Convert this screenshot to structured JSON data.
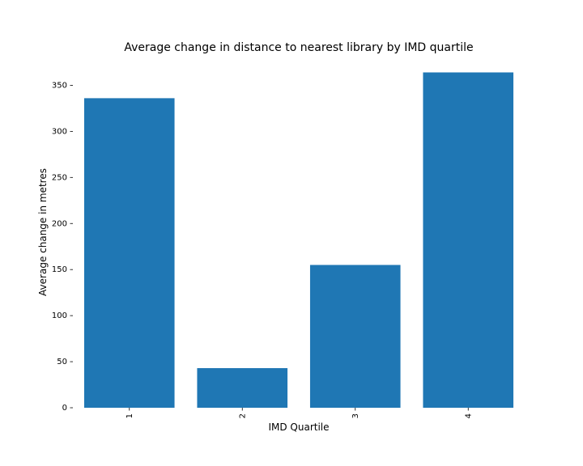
{
  "chart_data": {
    "type": "bar",
    "title": "Average change in distance to nearest library by IMD quartile",
    "xlabel": "IMD Quartile",
    "ylabel": "Average change in metres",
    "categories": [
      "1",
      "2",
      "3",
      "4"
    ],
    "values": [
      336,
      43,
      155,
      364
    ],
    "yticks": [
      0,
      50,
      100,
      150,
      200,
      250,
      300,
      350
    ],
    "ylim": [
      0,
      382
    ],
    "bar_color": "#1f77b4",
    "grid": false,
    "legend": "none",
    "xtick_rotation": "vertical"
  }
}
